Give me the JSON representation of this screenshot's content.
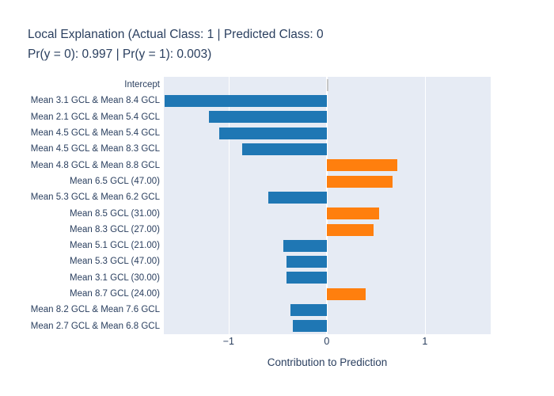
{
  "header": {
    "line1": "Local Explanation (Actual Class: 1 | Predicted Class: 0",
    "line2": "Pr(y = 0): 0.997 | Pr(y = 1): 0.003)"
  },
  "colors": {
    "positive": "#ff7f0e",
    "negative": "#1f77b4",
    "intercept": "#c7c7c7",
    "plot_bg": "#e6ebf4",
    "grid": "#ffffff",
    "text": "#2a3f5f"
  },
  "chart_data": {
    "type": "bar",
    "orientation": "horizontal",
    "title": "Local Explanation (Actual Class: 1 | Predicted Class: 0\nPr(y = 0): 0.997 | Pr(y = 1): 0.003)",
    "xlabel": "Contribution to Prediction",
    "ylabel": "",
    "xlim": [
      -1.66,
      1.67
    ],
    "xticks": [
      -1,
      0,
      1
    ],
    "xtick_labels": [
      "−1",
      "0",
      "1"
    ],
    "grid": true,
    "legend": false,
    "categories": [
      "Intercept",
      "Mean 3.1 GCL & Mean 8.4 GCL",
      "Mean 2.1 GCL & Mean 5.4 GCL",
      "Mean 4.5 GCL & Mean 5.4 GCL",
      "Mean 4.5 GCL & Mean 8.3 GCL",
      "Mean 4.8 GCL & Mean 8.8 GCL",
      "Mean 6.5 GCL (47.00)",
      "Mean 5.3 GCL & Mean 6.2 GCL",
      "Mean 8.5 GCL (31.00)",
      "Mean 8.3 GCL (27.00)",
      "Mean 5.1 GCL (21.00)",
      "Mean 5.3 GCL (47.00)",
      "Mean 3.1 GCL (30.00)",
      "Mean 8.7 GCL (24.00)",
      "Mean 8.2 GCL & Mean 7.6 GCL",
      "Mean 2.7 GCL & Mean 6.8 GCL"
    ],
    "values": [
      0.02,
      -1.65,
      -1.2,
      -1.1,
      -0.86,
      0.72,
      0.67,
      -0.6,
      0.53,
      0.48,
      -0.44,
      -0.41,
      -0.41,
      0.4,
      -0.37,
      -0.35
    ],
    "bar_colors": [
      "intercept",
      "negative",
      "negative",
      "negative",
      "negative",
      "positive",
      "positive",
      "negative",
      "positive",
      "positive",
      "negative",
      "negative",
      "negative",
      "positive",
      "negative",
      "negative"
    ]
  }
}
